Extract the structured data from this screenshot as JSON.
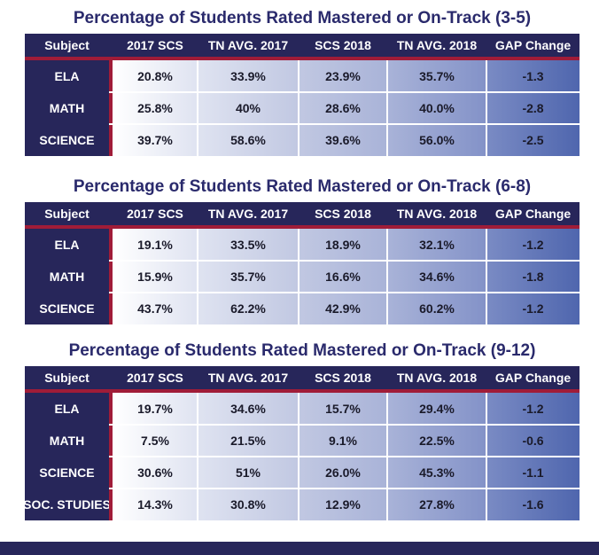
{
  "chart_data": [
    {
      "type": "table",
      "title": "Percentage of Students Rated Mastered or On-Track (3-5)",
      "columns": [
        "Subject",
        "2017 SCS",
        "TN AVG. 2017",
        "SCS 2018",
        "TN AVG. 2018",
        "GAP Change"
      ],
      "rows": [
        [
          "ELA",
          "20.8%",
          "33.9%",
          "23.9%",
          "35.7%",
          "-1.3"
        ],
        [
          "MATH",
          "25.8%",
          "40%",
          "28.6%",
          "40.0%",
          "-2.8"
        ],
        [
          "SCIENCE",
          "39.7%",
          "58.6%",
          "39.6%",
          "56.0%",
          "-2.5"
        ]
      ]
    },
    {
      "type": "table",
      "title": "Percentage of Students Rated Mastered or On-Track (6-8)",
      "columns": [
        "Subject",
        "2017 SCS",
        "TN AVG. 2017",
        "SCS 2018",
        "TN AVG. 2018",
        "GAP Change"
      ],
      "rows": [
        [
          "ELA",
          "19.1%",
          "33.5%",
          "18.9%",
          "32.1%",
          "-1.2"
        ],
        [
          "MATH",
          "15.9%",
          "35.7%",
          "16.6%",
          "34.6%",
          "-1.8"
        ],
        [
          "SCIENCE",
          "43.7%",
          "62.2%",
          "42.9%",
          "60.2%",
          "-1.2"
        ]
      ]
    },
    {
      "type": "table",
      "title": "Percentage of Students Rated Mastered or On-Track (9-12)",
      "columns": [
        "Subject",
        "2017 SCS",
        "TN AVG. 2017",
        "SCS 2018",
        "TN AVG. 2018",
        "GAP Change"
      ],
      "rows": [
        [
          "ELA",
          "19.7%",
          "34.6%",
          "15.7%",
          "29.4%",
          "-1.2"
        ],
        [
          "MATH",
          "7.5%",
          "21.5%",
          "9.1%",
          "22.5%",
          "-0.6"
        ],
        [
          "SCIENCE",
          "30.6%",
          "51%",
          "26.0%",
          "45.3%",
          "-1.1"
        ],
        [
          "SOC. STUDIES",
          "14.3%",
          "30.8%",
          "12.9%",
          "27.8%",
          "-1.6"
        ]
      ]
    }
  ],
  "colors": {
    "header_navy": "#27265a",
    "accent_red": "#a01c38",
    "title_text": "#2a2a6c"
  }
}
